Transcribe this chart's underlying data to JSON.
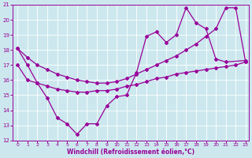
{
  "xlabel": "Windchill (Refroidissement éolien,°C)",
  "bg_color": "#cce8ee",
  "line_color": "#990099",
  "xlim": [
    -0.5,
    23.3
  ],
  "ylim": [
    12,
    21
  ],
  "xticks": [
    0,
    1,
    2,
    3,
    4,
    5,
    6,
    7,
    8,
    9,
    10,
    11,
    12,
    13,
    14,
    15,
    16,
    17,
    18,
    19,
    20,
    21,
    22,
    23
  ],
  "yticks": [
    12,
    13,
    14,
    15,
    16,
    17,
    18,
    19,
    20,
    21
  ],
  "line1_x": [
    0,
    1,
    2,
    3,
    4,
    5,
    6,
    7,
    8,
    9,
    10,
    11,
    12,
    13,
    14,
    15,
    16,
    17,
    18,
    19,
    20,
    21,
    23
  ],
  "line1_y": [
    18.1,
    17.0,
    15.8,
    14.8,
    13.5,
    13.1,
    12.4,
    13.1,
    13.1,
    14.3,
    14.9,
    15.0,
    16.5,
    18.9,
    19.2,
    18.5,
    19.0,
    20.8,
    19.8,
    19.4,
    17.4,
    17.2,
    17.3
  ],
  "line2_x": [
    0,
    1,
    2,
    3,
    4,
    5,
    6,
    7,
    8,
    9,
    10,
    11,
    12,
    13,
    14,
    15,
    16,
    17,
    18,
    19,
    20,
    21,
    22,
    23
  ],
  "line2_y": [
    17.0,
    16.0,
    15.8,
    15.6,
    15.4,
    15.3,
    15.2,
    15.2,
    15.3,
    15.3,
    15.4,
    15.6,
    15.7,
    15.9,
    16.1,
    16.2,
    16.4,
    16.5,
    16.6,
    16.7,
    16.8,
    16.9,
    17.0,
    17.2
  ],
  "line3_x": [
    0,
    1,
    2,
    3,
    4,
    5,
    6,
    7,
    8,
    9,
    10,
    11,
    12,
    13,
    14,
    15,
    16,
    17,
    18,
    19,
    20,
    21,
    22,
    23
  ],
  "line3_y": [
    18.1,
    17.5,
    17.0,
    16.7,
    16.4,
    16.2,
    16.0,
    15.9,
    15.8,
    15.8,
    15.9,
    16.1,
    16.4,
    16.7,
    17.0,
    17.3,
    17.6,
    18.0,
    18.4,
    18.9,
    19.4,
    20.8,
    20.8,
    17.2
  ]
}
